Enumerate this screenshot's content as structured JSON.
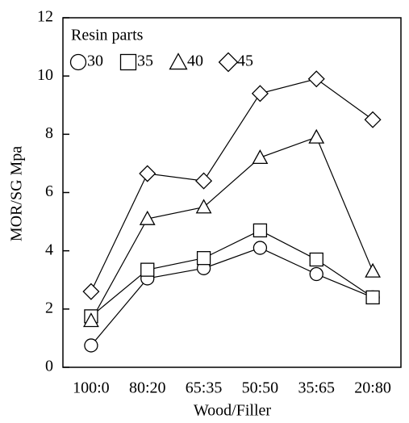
{
  "chart_data": {
    "type": "line",
    "x_label": "Wood/Filler",
    "y_label": "MOR/SG  Mpa",
    "legend_title": "Resin parts",
    "legend_position": "upper left",
    "categories": [
      "100:0",
      "80:20",
      "65:35",
      "50:50",
      "35:65",
      "20:80"
    ],
    "series": [
      {
        "name": "30",
        "color": "#000000",
        "marker": "circle",
        "values": [
          0.75,
          3.05,
          3.4,
          4.1,
          3.2,
          2.4
        ]
      },
      {
        "name": "35",
        "color": "#000000",
        "marker": "square",
        "values": [
          1.75,
          3.35,
          3.75,
          4.7,
          3.7,
          2.4
        ]
      },
      {
        "name": "40",
        "color": "#000000",
        "marker": "triangle",
        "values": [
          1.6,
          5.1,
          5.5,
          7.2,
          7.9,
          3.3
        ]
      },
      {
        "name": "45",
        "color": "#000000",
        "marker": "diamond",
        "values": [
          2.6,
          6.65,
          6.4,
          9.4,
          9.9,
          8.5
        ]
      }
    ],
    "ylim": [
      0,
      12
    ],
    "yticks": [
      0,
      2,
      4,
      6,
      8,
      10,
      12
    ],
    "grid": false
  }
}
